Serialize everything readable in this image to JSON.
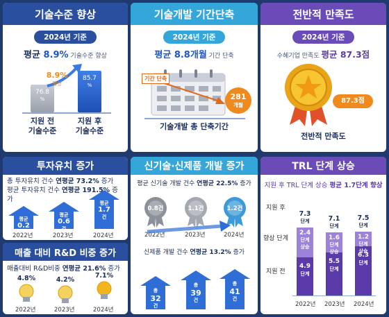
{
  "p1": {
    "title": "기술수준 향상",
    "pill": "2024년 기준",
    "avg_prefix": "평균 ",
    "avg_value": "8.9%",
    "avg_suffix": " 기술수준 향상",
    "before_value": "76.8",
    "before_unit": "%",
    "after_value": "85.7",
    "after_unit": "%",
    "delta_value": "8.9%",
    "delta_label": "향상",
    "before_label_1": "지원 전",
    "before_label_2": "기술수준",
    "after_label_1": "지원 후",
    "after_label_2": "기술수준"
  },
  "p2": {
    "title": "기술개발 기간단축",
    "pill": "2024년 기준",
    "avg_prefix": "평균 ",
    "avg_value": "8.8개월",
    "avg_suffix": " 기간 단축",
    "tag": "기간 단축",
    "circle_value": "281",
    "circle_unit": "개월",
    "caption": "기술개발 총 단축기간"
  },
  "p3": {
    "title": "전반적 만족도",
    "pill": "2024년 기준",
    "sub_prefix": "수혜기업 만족도 ",
    "sub_value": "평균 87.3점",
    "badge": "87.3점",
    "caption": "전반적 만족도"
  },
  "p4": {
    "title": "투자유치 증가",
    "line1_a": "총 투자유치 건수 ",
    "line1_b": "연평균 73.2%",
    "line1_c": " 증가",
    "line2_a": "평균 투자유치 건수 ",
    "line2_b": "연평균 191.5%",
    "line2_c": " 증가",
    "bars": [
      {
        "top": "평균",
        "value": "0.2",
        "unit": "건",
        "year": "2022년",
        "level": 0.2
      },
      {
        "top": "평균",
        "value": "0.6",
        "unit": "건",
        "year": "2023년",
        "level": 0.6
      },
      {
        "top": "평균",
        "value": "1.7",
        "unit": "건",
        "year": "2024년",
        "level": 1.7
      }
    ]
  },
  "p5": {
    "title": "매출 대비 R&D 비중 증가",
    "sub_a": "매출대비 R&D비중 ",
    "sub_b": "연평균 21.6%",
    "sub_c": " 증가",
    "bulbs": [
      {
        "value": "4.8%",
        "year": "2022년"
      },
      {
        "value": "4.2%",
        "year": "2023년"
      },
      {
        "value": "7.1%",
        "year": "2024년"
      }
    ]
  },
  "p6": {
    "title": "신기술·신제품 개발 증가",
    "line1_a": "평균 신기술 개발 건수 ",
    "line1_b": "연평균 22.5%",
    "line1_c": " 증가",
    "medals": [
      {
        "value": "0.8건",
        "year": "2022년"
      },
      {
        "value": "1.1건",
        "year": "2023년"
      },
      {
        "value": "1.2건",
        "year": "2024년"
      }
    ],
    "line2_a": "신제품 개발 건수 ",
    "line2_b": "연평균 13.2%",
    "line2_c": " 증가",
    "bars": [
      {
        "top": "총",
        "value": "32",
        "unit": "건",
        "level": 32
      },
      {
        "top": "총",
        "value": "39",
        "unit": "건",
        "level": 39
      },
      {
        "top": "총",
        "value": "41",
        "unit": "건",
        "level": 41
      }
    ]
  },
  "p7": {
    "title": "TRL 단계 상승",
    "sub_a": "지원 후 TRL 단계 상승 ",
    "sub_b": "평균 1.7단계 향상",
    "row_after": "지원 후",
    "row_up": "향상 단계",
    "row_before": "지원 전",
    "cols": [
      {
        "after": "7.3",
        "after_unit": "단계",
        "up": "2.4",
        "up_unit_1": "단계",
        "up_unit_2": "상승",
        "before": "4.9",
        "before_unit": "단계",
        "year": "2022년",
        "before_level": 4.9,
        "after_level": 7.3
      },
      {
        "after": "7.1",
        "after_unit": "단계",
        "up": "1.6",
        "up_unit_1": "단계",
        "up_unit_2": "상승",
        "before": "5.5",
        "before_unit": "단계",
        "year": "2023년",
        "before_level": 5.5,
        "after_level": 7.1
      },
      {
        "after": "7.5",
        "after_unit": "단계",
        "up": "1.2",
        "up_unit_1": "단계",
        "up_unit_2": "상승",
        "before": "6.3",
        "before_unit": "단계",
        "year": "2024년",
        "before_level": 6.3,
        "after_level": 7.5
      }
    ]
  },
  "colors": {
    "p1_header": "#2a4f9e",
    "p2_header": "#35a6d9",
    "p3_header": "#6a4bb8",
    "accent_orange": "#f08a1e",
    "accent_blue": "#1f56c4"
  }
}
